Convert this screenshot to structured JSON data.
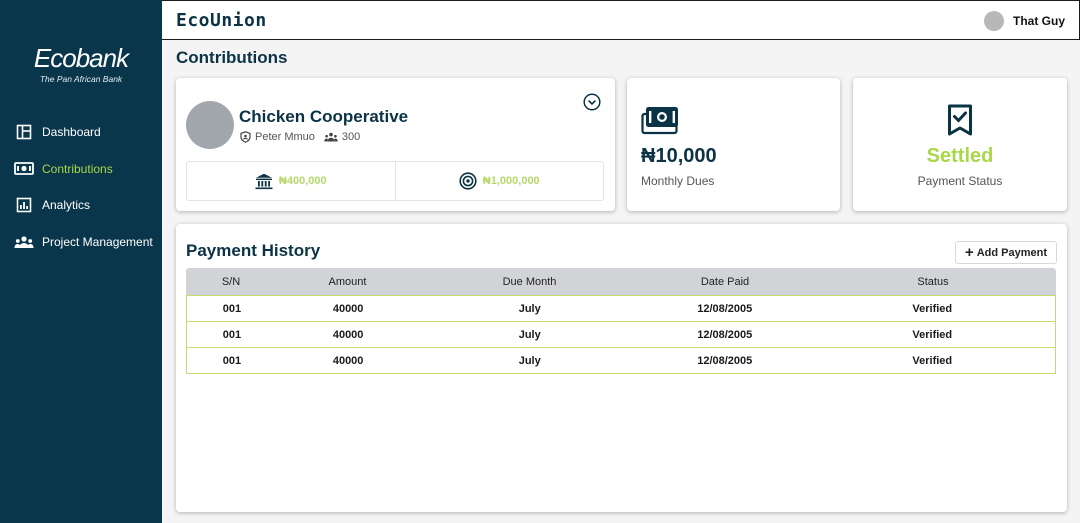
{
  "sidebar": {
    "brand": "Ecobank",
    "tagline": "The Pan African Bank",
    "items": [
      {
        "label": "Dashboard",
        "icon": "dashboard-icon",
        "active": false
      },
      {
        "label": "Contributions",
        "icon": "contributions-icon",
        "active": true
      },
      {
        "label": "Analytics",
        "icon": "analytics-icon",
        "active": false
      },
      {
        "label": "Project Management",
        "icon": "team-icon",
        "active": false
      }
    ]
  },
  "header": {
    "app_title": "EcoUnion",
    "user_name": "That Guy"
  },
  "page": {
    "title": "Contributions"
  },
  "cooperative": {
    "name": "Chicken Cooperative",
    "leader": "Peter Mmuo",
    "members": "300",
    "balance": "₦400,000",
    "target": "₦1,000,000"
  },
  "dues": {
    "value": "₦10,000",
    "label": "Monthly Dues"
  },
  "status": {
    "value": "Settled",
    "label": "Payment Status"
  },
  "history": {
    "title": "Payment History",
    "add_label": "Add Payment",
    "columns": [
      "S/N",
      "Amount",
      "Due Month",
      "Date Paid",
      "Status"
    ],
    "rows": [
      [
        "001",
        "40000",
        "July",
        "12/08/2005",
        "Verified"
      ],
      [
        "001",
        "40000",
        "July",
        "12/08/2005",
        "Verified"
      ],
      [
        "001",
        "40000",
        "July",
        "12/08/2005",
        "Verified"
      ]
    ]
  },
  "colors": {
    "sidebar_bg": "#09364a",
    "accent_green": "#a8d84a",
    "navy_text": "#0b3345"
  }
}
